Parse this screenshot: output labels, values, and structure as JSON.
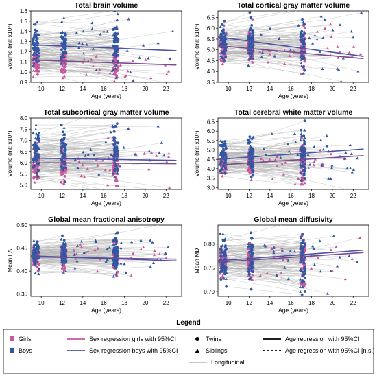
{
  "colors": {
    "girls": "#c9579a",
    "boys": "#2f57a2",
    "girls_line": "#7a4a8f",
    "boys_line": "#4a52a8",
    "longitudinal": "#b5b5b5"
  },
  "chart_data": [
    {
      "type": "scatter",
      "title": "Total brain volume",
      "xlabel": "Age (years)",
      "ylabel": "Volume (ml; x10⁶)",
      "xlim": [
        9,
        23.5
      ],
      "ylim": [
        0.9,
        1.6
      ],
      "xticks": [
        "10",
        "12",
        "14",
        "16",
        "18",
        "20",
        "22"
      ],
      "yticks": [
        "0.9",
        "1.0",
        "1.1",
        "1.2",
        "1.3",
        "1.4",
        "1.5",
        "1.6"
      ],
      "series": [
        {
          "name": "Girls",
          "center": 1.11,
          "spread": 0.07
        },
        {
          "name": "Boys",
          "center": 1.27,
          "spread": 0.08
        }
      ],
      "regression": {
        "girls": [
          [
            9,
            1.12
          ],
          [
            23,
            1.07
          ]
        ],
        "boys": [
          [
            9,
            1.27
          ],
          [
            23,
            1.21
          ]
        ]
      }
    },
    {
      "type": "scatter",
      "title": "Total cortical gray matter volume",
      "xlabel": "Age (years)",
      "ylabel": "Volume (ml; x10⁵)",
      "xlim": [
        9,
        23.5
      ],
      "ylim": [
        3.5,
        6.8
      ],
      "xticks": [
        "10",
        "12",
        "14",
        "16",
        "18",
        "20",
        "22"
      ],
      "yticks": [
        "3.5",
        "4.0",
        "4.5",
        "5.0",
        "5.5",
        "6.0",
        "6.5"
      ],
      "series": [
        {
          "name": "Girls",
          "center": 5.0,
          "spread": 0.35
        },
        {
          "name": "Boys",
          "center": 5.4,
          "spread": 0.4
        }
      ],
      "regression": {
        "girls": [
          [
            9,
            5.2
          ],
          [
            23,
            4.6
          ]
        ],
        "boys": [
          [
            9,
            5.6
          ],
          [
            23,
            4.7
          ]
        ]
      }
    },
    {
      "type": "scatter",
      "title": "Total subcortical gray matter volume",
      "xlabel": "Age (years)",
      "ylabel": "Volume (ml; x10⁴)",
      "xlim": [
        9,
        23.5
      ],
      "ylim": [
        4.8,
        8.0
      ],
      "xticks": [
        "10",
        "12",
        "14",
        "16",
        "18",
        "20",
        "22"
      ],
      "yticks": [
        "5.0",
        "5.5",
        "6.0",
        "6.5",
        "7.0",
        "7.5",
        "8.0"
      ],
      "series": [
        {
          "name": "Girls",
          "center": 5.9,
          "spread": 0.35
        },
        {
          "name": "Boys",
          "center": 6.4,
          "spread": 0.45
        }
      ],
      "regression": {
        "girls": [
          [
            9,
            6.0
          ],
          [
            23,
            5.95
          ]
        ],
        "boys": [
          [
            9,
            6.2
          ],
          [
            23,
            6.1
          ]
        ]
      }
    },
    {
      "type": "scatter",
      "title": "Total cerebral white matter volume",
      "xlabel": "Age (years)",
      "ylabel": "Volume (ml; x10⁵)",
      "xlim": [
        9,
        23.5
      ],
      "ylim": [
        2.9,
        6.7
      ],
      "xticks": [
        "10",
        "12",
        "14",
        "16",
        "18",
        "20",
        "22"
      ],
      "yticks": [
        "3.0",
        "3.5",
        "4.0",
        "4.5",
        "5.0",
        "5.5",
        "6.0",
        "6.5"
      ],
      "series": [
        {
          "name": "Girls",
          "center": 4.3,
          "spread": 0.4
        },
        {
          "name": "Boys",
          "center": 4.8,
          "spread": 0.45
        }
      ],
      "regression": {
        "girls": [
          [
            9,
            4.2
          ],
          [
            23,
            4.7
          ]
        ],
        "boys": [
          [
            9,
            4.5
          ],
          [
            23,
            5.05
          ]
        ]
      }
    },
    {
      "type": "scatter",
      "title": "Global mean fractional anisotropy",
      "xlabel": "Age (years)",
      "ylabel": "Mean FA",
      "xlim": [
        9,
        23.5
      ],
      "ylim": [
        0.345,
        0.5
      ],
      "xticks": [
        "10",
        "12",
        "14",
        "16",
        "18",
        "20",
        "22"
      ],
      "yticks": [
        "0.35",
        "0.40",
        "0.45",
        "0.50"
      ],
      "series": [
        {
          "name": "Girls",
          "center": 0.433,
          "spread": 0.012
        },
        {
          "name": "Boys",
          "center": 0.435,
          "spread": 0.013
        }
      ],
      "regression": {
        "girls": [
          [
            9,
            0.431
          ],
          [
            23,
            0.426
          ]
        ],
        "boys": [
          [
            9,
            0.433
          ],
          [
            23,
            0.422
          ]
        ]
      }
    },
    {
      "type": "scatter",
      "title": "Global mean diffusivity",
      "xlabel": "Age (years)",
      "ylabel": "Mean MD",
      "xlim": [
        9,
        23.5
      ],
      "ylim": [
        0.69,
        0.84
      ],
      "xticks": [
        "10",
        "12",
        "14",
        "16",
        "18",
        "20",
        "22"
      ],
      "yticks": [
        "0.70",
        "0.75",
        "0.80"
      ],
      "series": [
        {
          "name": "Girls",
          "center": 0.762,
          "spread": 0.018
        },
        {
          "name": "Boys",
          "center": 0.768,
          "spread": 0.02
        }
      ],
      "regression": {
        "girls": [
          [
            9,
            0.762
          ],
          [
            23,
            0.782
          ]
        ],
        "boys": [
          [
            9,
            0.765
          ],
          [
            23,
            0.787
          ]
        ]
      }
    }
  ],
  "legend": {
    "title": "Legend",
    "girls": "Girls",
    "boys": "Boys",
    "sex_girls": "Sex regression girls with 95%CI",
    "sex_boys": "Sex regression boys with 95%CI",
    "longitudinal": "Longitudinal",
    "twins": "Twins",
    "siblings": "Siblings",
    "age_reg": "Age regression with 95%CI",
    "age_reg_ns": "Age regression with 95%CI [n.s.]"
  }
}
